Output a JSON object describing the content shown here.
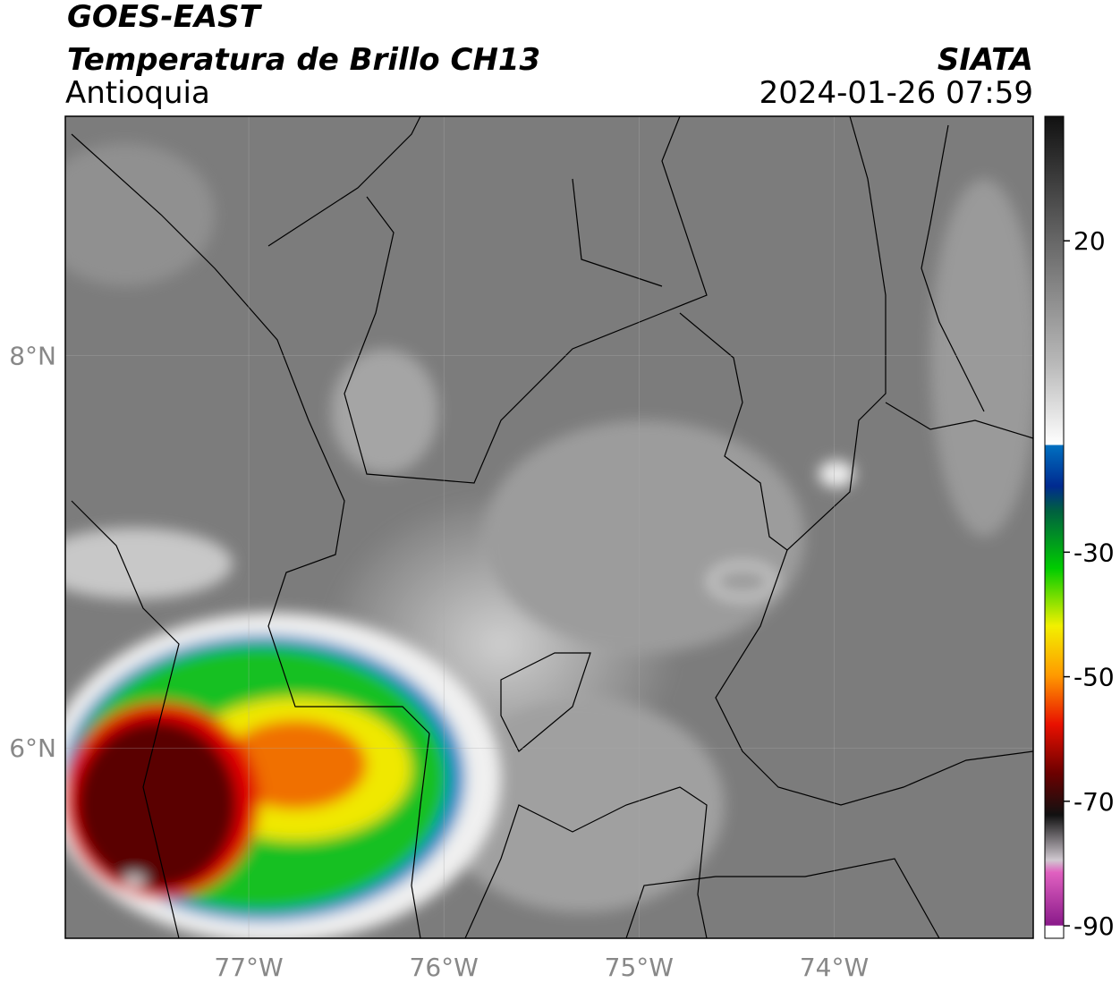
{
  "header": {
    "title": "GOES-EAST",
    "subtitle": "Temperatura de Brillo CH13",
    "region": "Antioquia",
    "source": "SIATA",
    "datetime": "2024-01-26 07:59"
  },
  "map": {
    "xlim": [
      -77.94,
      -72.98
    ],
    "ylim": [
      5.03,
      9.22
    ],
    "xticks": [
      {
        "value": -77,
        "label": "77°W"
      },
      {
        "value": -76,
        "label": "76°W"
      },
      {
        "value": -75,
        "label": "75°W"
      },
      {
        "value": -74,
        "label": "74°W"
      }
    ],
    "yticks": [
      {
        "value": 8,
        "label": "8°N"
      },
      {
        "value": 6,
        "label": "6°N"
      }
    ],
    "grid": true
  },
  "colorbar": {
    "lim": [
      -92,
      40
    ],
    "ticks": [
      20,
      -30,
      -50,
      -70,
      -90
    ]
  }
}
